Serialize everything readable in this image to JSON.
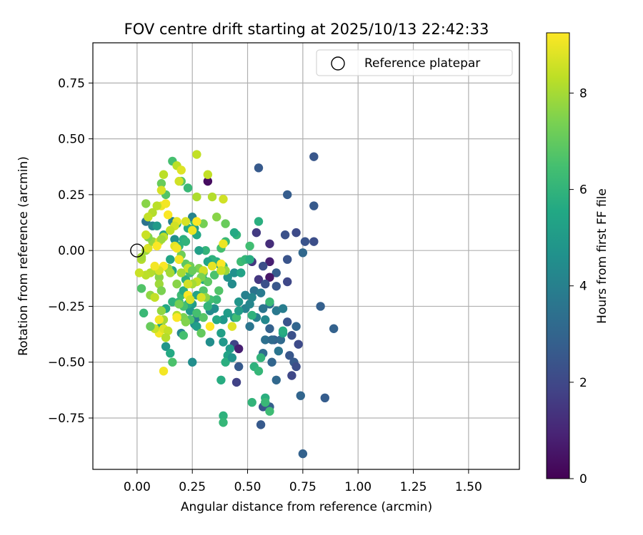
{
  "chart_data": {
    "type": "scatter",
    "title": "FOV centre drift starting at 2025/10/13 22:42:33",
    "xlabel": "Angular distance from reference (arcmin)",
    "ylabel": "Rotation from reference (arcmin)",
    "xlim": [
      -0.2,
      1.73
    ],
    "ylim": [
      -0.98,
      0.93
    ],
    "xticks": [
      0.0,
      0.25,
      0.5,
      0.75,
      1.0,
      1.25,
      1.5
    ],
    "xtick_labels": [
      "0.00",
      "0.25",
      "0.50",
      "0.75",
      "1.00",
      "1.25",
      "1.50"
    ],
    "yticks": [
      -0.75,
      -0.5,
      -0.25,
      0.0,
      0.25,
      0.5,
      0.75
    ],
    "ytick_labels": [
      "−0.75",
      "−0.50",
      "−0.25",
      "0.00",
      "0.25",
      "0.50",
      "0.75"
    ],
    "grid": true,
    "legend": {
      "placement": "top-right",
      "entries": [
        "Reference platepar"
      ]
    },
    "reference_point": {
      "x": 0.0,
      "y": 0.0,
      "label": "Reference platepar"
    },
    "colorbar": {
      "label": "Hours from first FF file",
      "min": 0,
      "max": 9.25,
      "ticks": [
        0,
        2,
        4,
        6,
        8
      ],
      "tick_labels": [
        "0",
        "2",
        "4",
        "6",
        "8"
      ],
      "colormap": "viridis"
    },
    "colormap_stops": [
      "#440154",
      "#482475",
      "#414487",
      "#355f8d",
      "#2a788e",
      "#21918c",
      "#22a884",
      "#44bf70",
      "#7ad151",
      "#bddf26",
      "#fde725"
    ],
    "points": [
      [
        0.8,
        0.42,
        2.5
      ],
      [
        0.55,
        0.37,
        2.6
      ],
      [
        0.68,
        0.25,
        2.7
      ],
      [
        0.8,
        0.2,
        2.6
      ],
      [
        0.32,
        0.31,
        0.3
      ],
      [
        0.6,
        0.03,
        1.2
      ],
      [
        0.67,
        0.07,
        2.3
      ],
      [
        0.72,
        0.08,
        2.1
      ],
      [
        0.76,
        0.04,
        2.4
      ],
      [
        0.8,
        0.04,
        2.2
      ],
      [
        0.75,
        -0.01,
        3.1
      ],
      [
        0.68,
        -0.04,
        2.4
      ],
      [
        0.6,
        -0.05,
        0.8
      ],
      [
        0.63,
        -0.1,
        2.7
      ],
      [
        0.57,
        -0.07,
        2.2
      ],
      [
        0.6,
        -0.12,
        0.6
      ],
      [
        0.52,
        -0.05,
        1.5
      ],
      [
        0.55,
        -0.13,
        1.5
      ],
      [
        0.58,
        -0.15,
        2.3
      ],
      [
        0.63,
        -0.16,
        2.5
      ],
      [
        0.68,
        -0.14,
        2.0
      ],
      [
        0.54,
        0.08,
        1.6
      ],
      [
        0.83,
        -0.25,
        2.8
      ],
      [
        0.89,
        -0.35,
        2.9
      ],
      [
        0.68,
        -0.32,
        2.4
      ],
      [
        0.72,
        -0.34,
        3.0
      ],
      [
        0.7,
        -0.38,
        2.3
      ],
      [
        0.73,
        -0.42,
        2.1
      ],
      [
        0.62,
        -0.4,
        2.7
      ],
      [
        0.65,
        -0.4,
        3.2
      ],
      [
        0.6,
        -0.35,
        2.9
      ],
      [
        0.58,
        -0.4,
        3.4
      ],
      [
        0.69,
        -0.47,
        2.5
      ],
      [
        0.71,
        -0.5,
        2.6
      ],
      [
        0.72,
        -0.52,
        2.2
      ],
      [
        0.7,
        -0.56,
        2.0
      ],
      [
        0.63,
        -0.58,
        3.1
      ],
      [
        0.74,
        -0.65,
        3.0
      ],
      [
        0.85,
        -0.66,
        2.7
      ],
      [
        0.75,
        -0.91,
        2.9
      ],
      [
        0.56,
        -0.78,
        2.6
      ],
      [
        0.57,
        -0.7,
        2.4
      ],
      [
        0.6,
        -0.7,
        2.8
      ],
      [
        0.61,
        -0.5,
        3.0
      ],
      [
        0.57,
        -0.46,
        3.3
      ],
      [
        0.64,
        -0.45,
        3.6
      ],
      [
        0.45,
        -0.59,
        1.8
      ],
      [
        0.44,
        -0.42,
        1.9
      ],
      [
        0.46,
        -0.44,
        0.8
      ],
      [
        0.46,
        -0.52,
        2.6
      ],
      [
        0.51,
        -0.34,
        3.6
      ],
      [
        0.49,
        -0.26,
        4.1
      ],
      [
        0.53,
        -0.18,
        3.5
      ],
      [
        0.49,
        -0.2,
        4.0
      ],
      [
        0.51,
        -0.24,
        4.2
      ],
      [
        0.6,
        -0.24,
        3.4
      ],
      [
        0.63,
        -0.27,
        3.7
      ],
      [
        0.66,
        -0.26,
        3.9
      ],
      [
        0.58,
        -0.31,
        4.3
      ],
      [
        0.66,
        -0.37,
        5.4
      ],
      [
        0.54,
        -0.3,
        4.0
      ],
      [
        0.43,
        -0.15,
        4.4
      ],
      [
        0.44,
        -0.1,
        4.6
      ],
      [
        0.41,
        -0.12,
        4.7
      ],
      [
        0.37,
        -0.06,
        5.0
      ],
      [
        0.47,
        -0.1,
        5.3
      ],
      [
        0.46,
        -0.23,
        4.8
      ],
      [
        0.44,
        -0.3,
        5.0
      ],
      [
        0.41,
        -0.28,
        5.1
      ],
      [
        0.39,
        -0.31,
        4.9
      ],
      [
        0.35,
        -0.26,
        4.6
      ],
      [
        0.33,
        -0.27,
        4.4
      ],
      [
        0.36,
        -0.31,
        5.6
      ],
      [
        0.33,
        -0.41,
        4.5
      ],
      [
        0.38,
        -0.37,
        5.2
      ],
      [
        0.39,
        -0.41,
        4.9
      ],
      [
        0.42,
        -0.44,
        5.0
      ],
      [
        0.41,
        -0.47,
        5.3
      ],
      [
        0.4,
        -0.5,
        5.8
      ],
      [
        0.43,
        -0.48,
        4.7
      ],
      [
        0.38,
        -0.58,
        5.7
      ],
      [
        0.39,
        -0.74,
        5.9
      ],
      [
        0.39,
        -0.77,
        6.1
      ],
      [
        0.52,
        -0.68,
        6.0
      ],
      [
        0.58,
        -0.66,
        5.8
      ],
      [
        0.58,
        -0.68,
        6.2
      ],
      [
        0.6,
        -0.72,
        6.3
      ],
      [
        0.53,
        -0.52,
        5.9
      ],
      [
        0.55,
        -0.54,
        6.1
      ],
      [
        0.56,
        -0.48,
        6.0
      ],
      [
        0.52,
        -0.29,
        5.9
      ],
      [
        0.47,
        -0.05,
        6.3
      ],
      [
        0.49,
        -0.04,
        6.1
      ],
      [
        0.51,
        -0.04,
        5.7
      ],
      [
        0.51,
        0.02,
        6.4
      ],
      [
        0.55,
        0.13,
        5.8
      ],
      [
        0.45,
        0.07,
        6.0
      ],
      [
        0.44,
        0.08,
        5.6
      ],
      [
        0.4,
        0.04,
        6.2
      ],
      [
        0.38,
        0.01,
        6.5
      ],
      [
        0.39,
        -0.07,
        6.1
      ],
      [
        0.36,
        -0.05,
        5.7
      ],
      [
        0.34,
        -0.04,
        5.9
      ],
      [
        0.32,
        -0.05,
        5.4
      ],
      [
        0.31,
        0.0,
        6.0
      ],
      [
        0.28,
        0.0,
        5.2
      ],
      [
        0.27,
        0.07,
        5.5
      ],
      [
        0.26,
        0.1,
        5.0
      ],
      [
        0.23,
        0.1,
        5.6
      ],
      [
        0.21,
        0.05,
        5.8
      ],
      [
        0.19,
        0.02,
        5.9
      ],
      [
        0.17,
        0.05,
        4.6
      ],
      [
        0.16,
        0.13,
        4.0
      ],
      [
        0.18,
        0.12,
        5.5
      ],
      [
        0.22,
        0.04,
        6.0
      ],
      [
        0.26,
        0.13,
        6.4
      ],
      [
        0.25,
        0.15,
        4.1
      ],
      [
        0.23,
        0.28,
        6.2
      ],
      [
        0.2,
        0.31,
        6.8
      ],
      [
        0.16,
        0.4,
        6.5
      ],
      [
        0.04,
        0.13,
        3.5
      ],
      [
        0.07,
        0.11,
        4.2
      ],
      [
        0.09,
        0.11,
        5.0
      ],
      [
        0.12,
        0.07,
        5.3
      ],
      [
        0.13,
        0.25,
        6.7
      ],
      [
        0.11,
        0.3,
        7.1
      ],
      [
        0.3,
        -0.13,
        5.5
      ],
      [
        0.3,
        -0.18,
        6.7
      ],
      [
        0.27,
        -0.2,
        5.3
      ],
      [
        0.25,
        -0.24,
        5.1
      ],
      [
        0.24,
        -0.27,
        4.9
      ],
      [
        0.26,
        -0.33,
        4.6
      ],
      [
        0.27,
        -0.3,
        4.0
      ],
      [
        0.25,
        -0.5,
        4.5
      ],
      [
        0.2,
        -0.37,
        4.2
      ],
      [
        0.13,
        -0.43,
        4.8
      ],
      [
        0.15,
        -0.46,
        5.6
      ],
      [
        0.16,
        -0.5,
        6.6
      ],
      [
        0.11,
        -0.34,
        5.4
      ],
      [
        0.13,
        -0.26,
        5.5
      ],
      [
        0.16,
        -0.23,
        5.9
      ],
      [
        0.19,
        -0.23,
        6.1
      ],
      [
        0.2,
        -0.2,
        6.3
      ],
      [
        0.21,
        -0.18,
        5.7
      ],
      [
        0.22,
        -0.13,
        5.8
      ],
      [
        0.24,
        -0.1,
        6.3
      ],
      [
        0.16,
        -0.09,
        5.3
      ],
      [
        0.15,
        -0.04,
        5.4
      ],
      [
        0.19,
        -0.04,
        6.2
      ],
      [
        0.2,
        -0.02,
        7.2
      ],
      [
        0.22,
        -0.06,
        6.9
      ],
      [
        0.24,
        -0.07,
        7.2
      ],
      [
        0.28,
        -0.08,
        7.4
      ],
      [
        0.3,
        -0.1,
        7.0
      ],
      [
        0.32,
        -0.14,
        6.9
      ],
      [
        0.35,
        -0.11,
        6.6
      ],
      [
        0.38,
        -0.09,
        7.3
      ],
      [
        0.4,
        -0.09,
        7.8
      ],
      [
        0.37,
        -0.18,
        6.7
      ],
      [
        0.36,
        -0.22,
        6.2
      ],
      [
        0.33,
        -0.22,
        6.4
      ],
      [
        0.31,
        -0.21,
        7.6
      ],
      [
        0.32,
        -0.25,
        6.0
      ],
      [
        0.3,
        -0.3,
        6.8
      ],
      [
        0.27,
        -0.34,
        5.1
      ],
      [
        0.29,
        -0.37,
        7.0
      ],
      [
        0.27,
        -0.28,
        6.5
      ],
      [
        0.24,
        -0.31,
        6.6
      ],
      [
        0.23,
        -0.24,
        5.7
      ],
      [
        0.21,
        -0.25,
        6.5
      ],
      [
        0.21,
        -0.3,
        7.4
      ],
      [
        0.21,
        -0.38,
        6.5
      ],
      [
        0.22,
        -0.32,
        7.5
      ],
      [
        0.18,
        -0.29,
        8.2
      ],
      [
        0.19,
        -0.24,
        7.3
      ],
      [
        0.18,
        -0.15,
        7.6
      ],
      [
        0.14,
        -0.08,
        7.7
      ],
      [
        0.1,
        -0.12,
        7.6
      ],
      [
        0.08,
        -0.09,
        7.8
      ],
      [
        0.06,
        -0.1,
        8.2
      ],
      [
        0.04,
        -0.11,
        8.3
      ],
      [
        0.01,
        -0.1,
        8.5
      ],
      [
        0.02,
        -0.04,
        8.2
      ],
      [
        0.04,
        0.0,
        7.9
      ],
      [
        0.05,
        0.01,
        8.7
      ],
      [
        0.07,
        0.04,
        7.8
      ],
      [
        0.1,
        0.04,
        8.8
      ],
      [
        0.12,
        0.06,
        8.3
      ],
      [
        0.14,
        0.16,
        9.2
      ],
      [
        0.11,
        0.2,
        9.0
      ],
      [
        0.13,
        0.21,
        9.1
      ],
      [
        0.09,
        0.2,
        8.3
      ],
      [
        0.07,
        0.17,
        8.2
      ],
      [
        0.05,
        0.15,
        8.4
      ],
      [
        0.04,
        0.21,
        7.6
      ],
      [
        0.11,
        0.27,
        8.7
      ],
      [
        0.12,
        0.34,
        8.3
      ],
      [
        0.18,
        0.38,
        8.3
      ],
      [
        0.2,
        0.36,
        8.8
      ],
      [
        0.19,
        0.31,
        8.6
      ],
      [
        0.27,
        0.43,
        8.4
      ],
      [
        0.32,
        0.34,
        8.4
      ],
      [
        0.27,
        0.24,
        8.1
      ],
      [
        0.34,
        0.24,
        8.2
      ],
      [
        0.39,
        0.23,
        8.6
      ],
      [
        0.36,
        0.15,
        7.6
      ],
      [
        0.4,
        0.12,
        7.1
      ],
      [
        0.3,
        0.12,
        7.3
      ],
      [
        0.27,
        0.13,
        9.2
      ],
      [
        0.25,
        0.09,
        9.0
      ],
      [
        0.22,
        0.13,
        8.7
      ],
      [
        0.18,
        0.13,
        8.9
      ],
      [
        0.17,
        0.11,
        8.6
      ],
      [
        0.15,
        0.09,
        8.4
      ],
      [
        0.11,
        0.05,
        7.9
      ],
      [
        0.09,
        0.02,
        9.2
      ],
      [
        0.05,
        0.06,
        7.5
      ],
      [
        0.04,
        0.07,
        8.5
      ],
      [
        0.17,
        0.02,
        8.9
      ],
      [
        0.18,
        0.01,
        9.1
      ],
      [
        0.19,
        -0.04,
        9.1
      ],
      [
        0.23,
        -0.08,
        8.5
      ],
      [
        0.25,
        -0.09,
        7.1
      ],
      [
        0.3,
        -0.09,
        8.6
      ],
      [
        0.34,
        -0.07,
        8.9
      ],
      [
        0.38,
        -0.06,
        9.2
      ],
      [
        0.38,
        -0.09,
        8.5
      ],
      [
        0.39,
        0.03,
        9.0
      ],
      [
        0.29,
        -0.12,
        7.4
      ],
      [
        0.27,
        -0.14,
        8.4
      ],
      [
        0.25,
        -0.15,
        8.0
      ],
      [
        0.23,
        -0.15,
        8.6
      ],
      [
        0.23,
        -0.2,
        9.2
      ],
      [
        0.24,
        -0.22,
        8.7
      ],
      [
        0.29,
        -0.21,
        8.7
      ],
      [
        0.2,
        -0.1,
        8.0
      ],
      [
        0.15,
        -0.1,
        8.0
      ],
      [
        0.12,
        -0.07,
        9.2
      ],
      [
        0.1,
        -0.09,
        8.7
      ],
      [
        0.08,
        -0.07,
        9.1
      ],
      [
        0.06,
        -0.2,
        7.7
      ],
      [
        0.08,
        -0.21,
        8.4
      ],
      [
        0.1,
        -0.15,
        7.9
      ],
      [
        0.11,
        -0.18,
        7.4
      ],
      [
        0.11,
        -0.27,
        7.7
      ],
      [
        0.12,
        -0.31,
        8.0
      ],
      [
        0.1,
        -0.31,
        9.1
      ],
      [
        0.1,
        -0.37,
        9.1
      ],
      [
        0.12,
        -0.35,
        8.8
      ],
      [
        0.14,
        -0.36,
        8.4
      ],
      [
        0.13,
        -0.39,
        8.2
      ],
      [
        0.08,
        -0.35,
        8.5
      ],
      [
        0.06,
        -0.34,
        7.1
      ],
      [
        0.03,
        -0.28,
        6.2
      ],
      [
        0.02,
        -0.17,
        6.7
      ],
      [
        0.02,
        -0.03,
        8.0
      ],
      [
        0.12,
        -0.54,
        9.1
      ],
      [
        0.18,
        -0.3,
        9.2
      ],
      [
        0.33,
        -0.34,
        9.3
      ],
      [
        0.43,
        -0.34,
        8.8
      ],
      [
        0.45,
        -0.3,
        6.3
      ],
      [
        0.46,
        -0.27,
        5.1
      ],
      [
        0.52,
        -0.21,
        4.2
      ],
      [
        0.56,
        -0.19,
        3.8
      ],
      [
        0.57,
        -0.26,
        3.6
      ],
      [
        0.6,
        -0.23,
        6.2
      ],
      [
        0.66,
        -0.36,
        5.7
      ],
      [
        0.61,
        -0.4,
        3.2
      ]
    ]
  }
}
